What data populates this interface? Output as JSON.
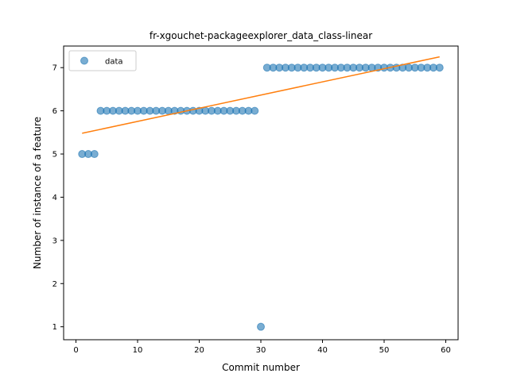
{
  "chart_data": {
    "type": "scatter",
    "title": "fr-xgouchet-packageexplorer_data_class-linear",
    "xlabel": "Commit number",
    "ylabel": "Number of instance of a feature",
    "xlim": [
      -2,
      62
    ],
    "ylim": [
      0.7,
      7.5
    ],
    "xticks": [
      0,
      10,
      20,
      30,
      40,
      50,
      60
    ],
    "yticks": [
      1,
      2,
      3,
      4,
      5,
      6,
      7
    ],
    "legend": {
      "position": "top-left",
      "entries": [
        "data"
      ]
    },
    "grid": false,
    "series": [
      {
        "name": "data",
        "kind": "scatter",
        "color": "#1f77b4",
        "x": [
          1,
          2,
          3,
          4,
          5,
          6,
          7,
          8,
          9,
          10,
          11,
          12,
          13,
          14,
          15,
          16,
          17,
          18,
          19,
          20,
          21,
          22,
          23,
          24,
          25,
          26,
          27,
          28,
          29,
          30,
          31,
          32,
          33,
          34,
          35,
          36,
          37,
          38,
          39,
          40,
          41,
          42,
          43,
          44,
          45,
          46,
          47,
          48,
          49,
          50,
          51,
          52,
          53,
          54,
          55,
          56,
          57,
          58,
          59
        ],
        "y": [
          5,
          5,
          5,
          6,
          6,
          6,
          6,
          6,
          6,
          6,
          6,
          6,
          6,
          6,
          6,
          6,
          6,
          6,
          6,
          6,
          6,
          6,
          6,
          6,
          6,
          6,
          6,
          6,
          6,
          1,
          7,
          7,
          7,
          7,
          7,
          7,
          7,
          7,
          7,
          7,
          7,
          7,
          7,
          7,
          7,
          7,
          7,
          7,
          7,
          7,
          7,
          7,
          7,
          7,
          7,
          7,
          7,
          7,
          7
        ]
      },
      {
        "kind": "line",
        "color": "#ff7f0e",
        "x": [
          1,
          59
        ],
        "y": [
          5.48,
          7.25
        ]
      }
    ]
  }
}
